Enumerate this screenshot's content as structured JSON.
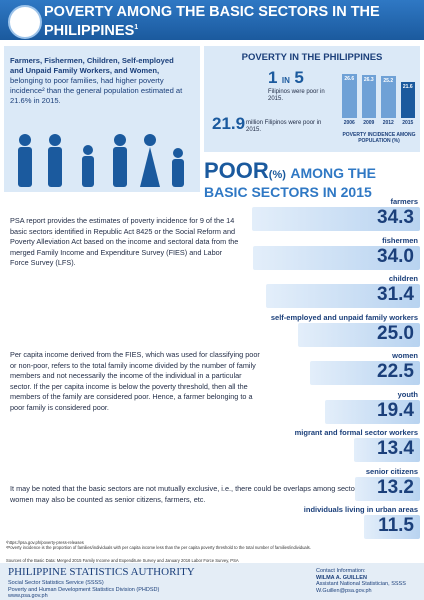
{
  "header": {
    "title": "POVERTY AMONG THE BASIC SECTORS IN THE PHILIPPINES",
    "footnote_mark": "1"
  },
  "intro": {
    "bold": "Farmers, Fishermen, Children, Self-employed and Unpaid Family Workers, and Women,",
    "text": "belonging to poor families, had higher poverty incidence² than the general population estimated at 21.6% in 2015."
  },
  "national": {
    "title": "POVERTY IN THE PHILIPPINES",
    "ratio_big": "1",
    "ratio_in": "IN",
    "ratio_den": "5",
    "ratio_text": "Filipinos were poor in 2015.",
    "count": "21.9",
    "count_text": "million Filipinos were poor in 2015.",
    "chart": {
      "categories": [
        "2006",
        "2009",
        "2012",
        "2015"
      ],
      "values": [
        26.6,
        26.3,
        25.2,
        21.6
      ],
      "caption": "POVERTY INCIDENCE AMONG POPULATION (%)"
    }
  },
  "heading": {
    "poor": "POOR",
    "unit": "(%)",
    "rest": "AMONG THE BASIC SECTORS IN 2015"
  },
  "paragraphs": [
    "PSA report provides the estimates of poverty incidence for 9 of the 14 basic sectors identified in Republic Act 8425 or the Social Reform and Poverty Alleviation Act based on the income and sectoral data from the merged Family Income and Expenditure Survey (FIES) and Labor Force Survey (LFS).",
    "Per capita income derived from the FIES, which was used for classifying poor or non-poor, refers to the total family income divided by the number of family members and not necessarily the income of the individual in a particular sector.  If the per capita income is below the poverty threshold, then all the members of the family are considered poor. Hence, a farmer belonging to a poor family is considered poor.",
    "It may be noted that the basic sectors are not mutually exclusive, i.e., there could be overlaps among sectors wherein women may also be counted as senior citizens, farmers, etc."
  ],
  "sectors": [
    {
      "name": "farmers",
      "value": 34.3
    },
    {
      "name": "fishermen",
      "value": 34.0,
      "value_label": "34.0"
    },
    {
      "name": "children",
      "value": 31.4
    },
    {
      "name": "self-employed and unpaid family workers",
      "value": 25.0,
      "value_label": "25.0"
    },
    {
      "name": "women",
      "value": 22.5
    },
    {
      "name": "youth",
      "value": 19.4
    },
    {
      "name": "migrant and formal sector workers",
      "value": 13.4
    },
    {
      "name": "senior citizens",
      "value": 13.2
    },
    {
      "name": "individuals living in urban areas",
      "value": 11.5
    }
  ],
  "footnotes": [
    "¹https://psa.gov.ph/poverty-press-releases",
    "²Poverty incidence is the proportion of families/individuals with per capita income less than the per capita poverty threshold to the total number of families/individuals."
  ],
  "sources": "Sources of the Basic Data: Merged 2015 Family Income and Expenditure Survey and January 2016 Labor Force Survey, PSA",
  "footer": {
    "org": "PHILIPPINE STATISTICS AUTHORITY",
    "unit": "Social Sector Statistics Service (SSSS)",
    "division": "Poverty and Human Development Statistics Division (PHDSD)",
    "web": "www.psa.gov.ph",
    "contact_title": "Contact Information:",
    "contact_name": "WILMA A. GUILLEN",
    "contact_role": "Assistant National Statistician, SSSS",
    "contact_email": "W.Guillen@psa.gov.ph"
  }
}
